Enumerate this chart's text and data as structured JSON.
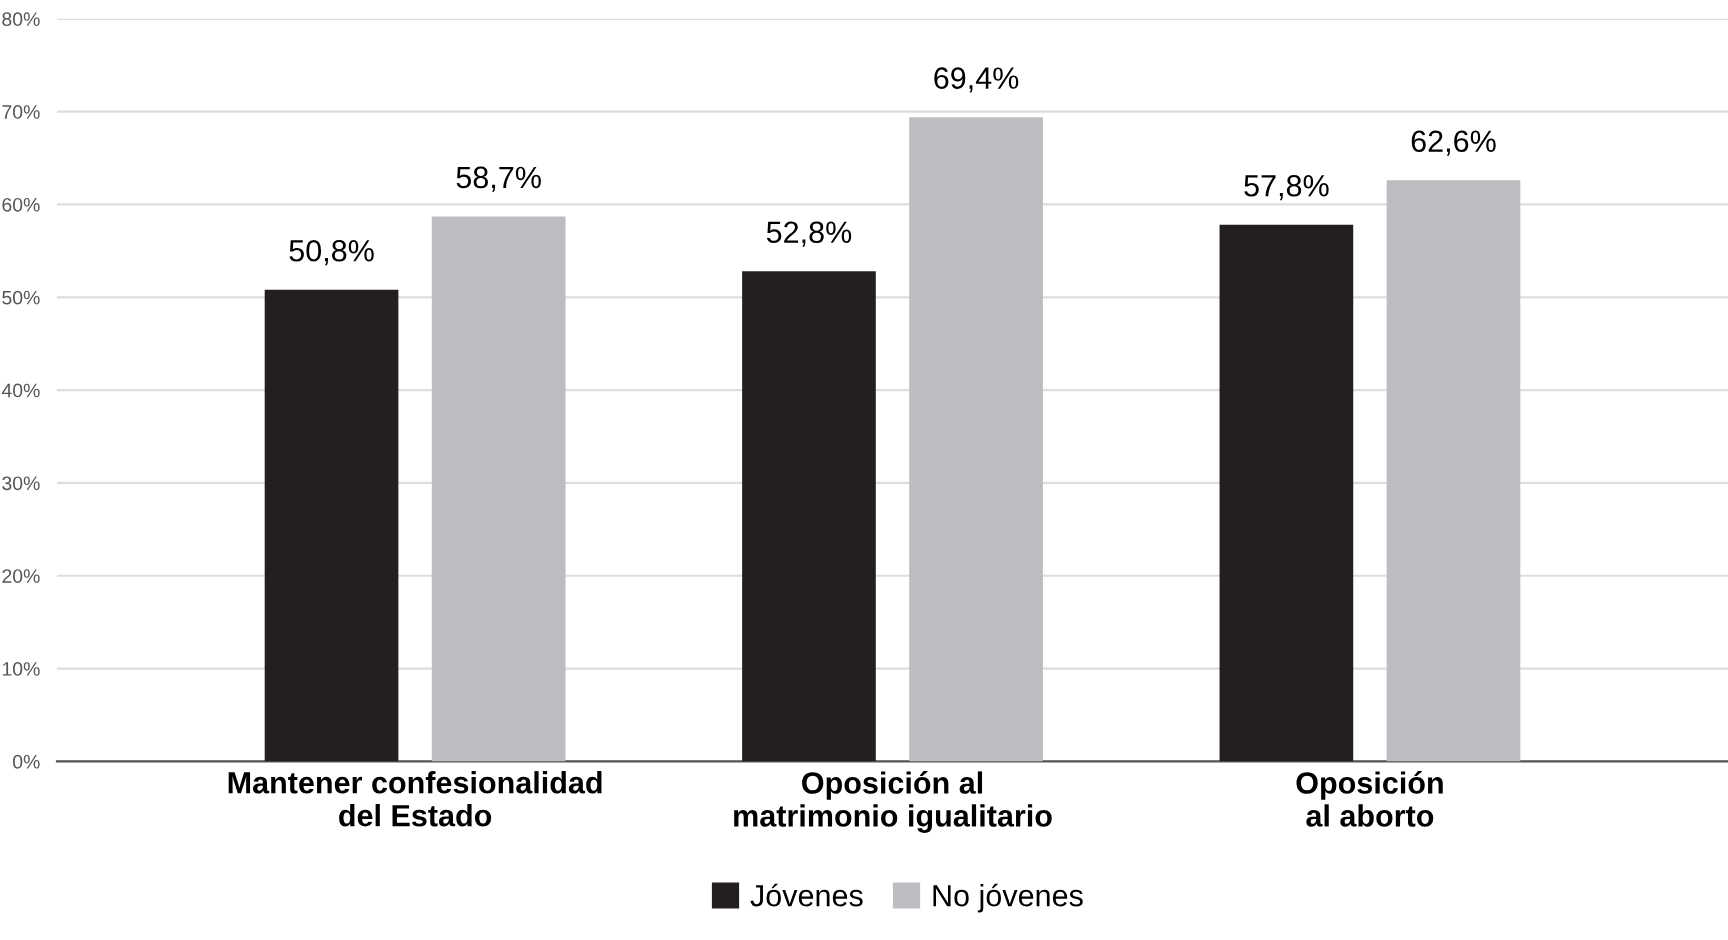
{
  "chart_data": {
    "type": "bar",
    "categories": [
      "Mantener confesionalidad\ndel Estado",
      "Oposición al\nmatrimonio igualitario",
      "Oposición\nal aborto"
    ],
    "series": [
      {
        "name": "Jóvenes",
        "color": "#231f20",
        "values": [
          50.8,
          52.8,
          57.8
        ],
        "value_labels": [
          "50,8%",
          "52,8%",
          "57,8%"
        ]
      },
      {
        "name": "No jóvenes",
        "color": "#bcbdc0",
        "values": [
          58.7,
          69.4,
          62.6
        ],
        "value_labels": [
          "58,7%",
          "69,4%",
          "62,6%"
        ]
      }
    ],
    "ylim": [
      0,
      80
    ],
    "yticks": [
      {
        "value": 0,
        "label": "0%"
      },
      {
        "value": 10,
        "label": "10%"
      },
      {
        "value": 20,
        "label": "20%"
      },
      {
        "value": 30,
        "label": "30%"
      },
      {
        "value": 40,
        "label": "40%"
      },
      {
        "value": 50,
        "label": "50%"
      },
      {
        "value": 60,
        "label": "60%"
      },
      {
        "value": 70,
        "label": "70%"
      },
      {
        "value": 80,
        "label": "80%"
      }
    ],
    "grid": "y",
    "legend": "bottom"
  }
}
